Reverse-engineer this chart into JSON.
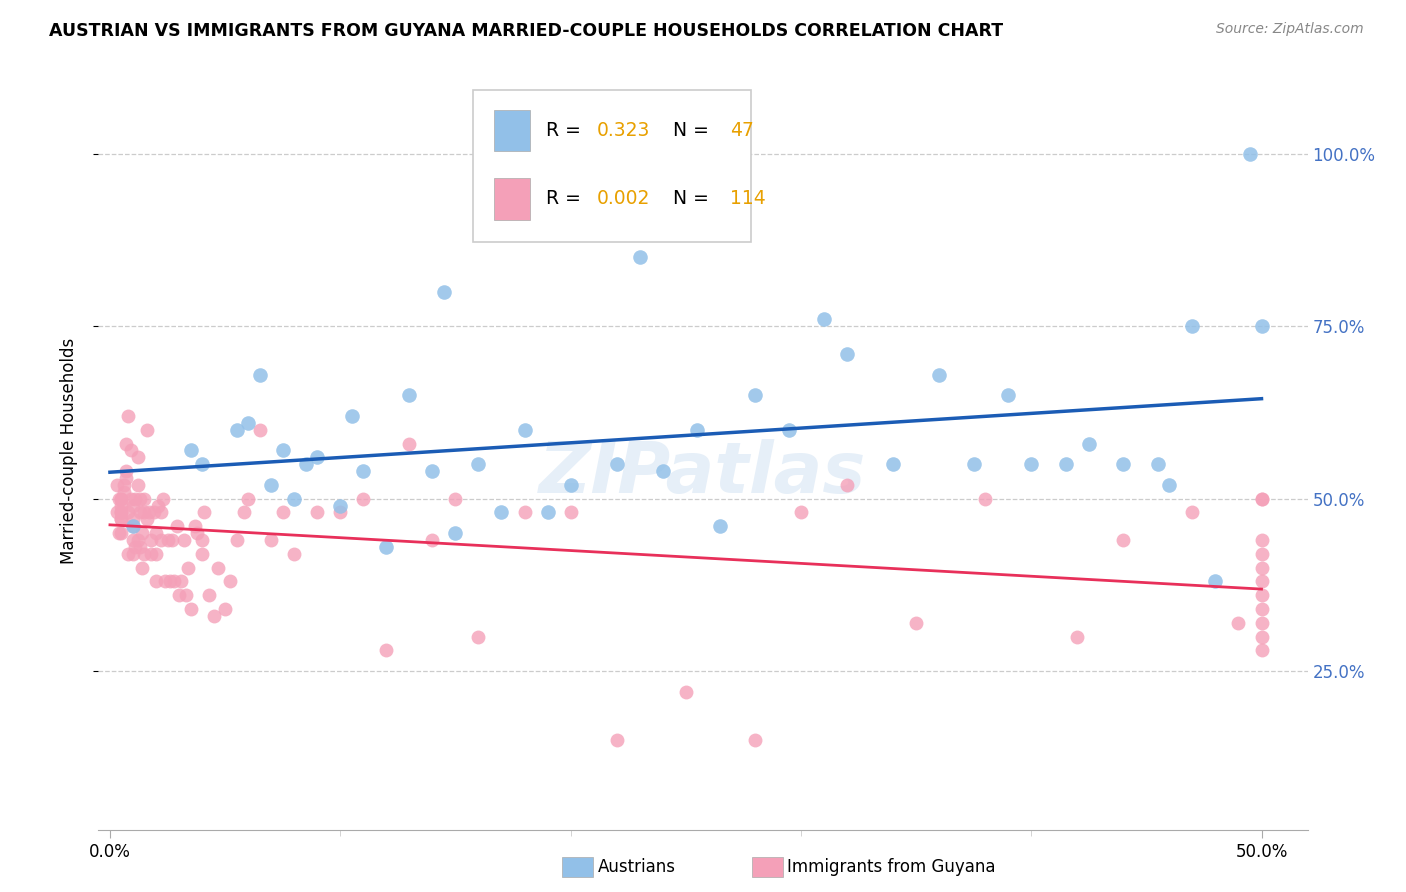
{
  "title": "AUSTRIAN VS IMMIGRANTS FROM GUYANA MARRIED-COUPLE HOUSEHOLDS CORRELATION CHART",
  "source": "Source: ZipAtlas.com",
  "ylabel": "Married-couple Households",
  "blue_color": "#92C0E8",
  "pink_color": "#F4A0B8",
  "blue_line_color": "#1B5CB5",
  "pink_line_color": "#E8305A",
  "ytick_positions": [
    0.25,
    0.5,
    0.75,
    1.0
  ],
  "ytick_labels": [
    "25.0%",
    "50.0%",
    "75.0%",
    "100.0%"
  ],
  "xtick_positions": [
    0.0,
    0.5
  ],
  "xtick_labels": [
    "0.0%",
    "50.0%"
  ],
  "xlim": [
    -0.005,
    0.52
  ],
  "ylim": [
    0.02,
    1.12
  ],
  "blue_R": "0.323",
  "blue_N": "47",
  "pink_R": "0.002",
  "pink_N": "114",
  "rn_color": "#E8A000",
  "blue_x": [
    0.01,
    0.035,
    0.04,
    0.055,
    0.06,
    0.065,
    0.07,
    0.075,
    0.08,
    0.085,
    0.09,
    0.1,
    0.105,
    0.11,
    0.12,
    0.13,
    0.14,
    0.145,
    0.15,
    0.16,
    0.17,
    0.18,
    0.19,
    0.2,
    0.22,
    0.23,
    0.24,
    0.255,
    0.265,
    0.28,
    0.295,
    0.31,
    0.32,
    0.34,
    0.36,
    0.375,
    0.39,
    0.4,
    0.415,
    0.425,
    0.44,
    0.455,
    0.46,
    0.47,
    0.48,
    0.495,
    0.5
  ],
  "blue_y": [
    0.46,
    0.57,
    0.55,
    0.6,
    0.61,
    0.68,
    0.52,
    0.57,
    0.5,
    0.55,
    0.56,
    0.49,
    0.62,
    0.54,
    0.43,
    0.65,
    0.54,
    0.8,
    0.45,
    0.55,
    0.48,
    0.6,
    0.48,
    0.52,
    0.55,
    0.85,
    0.54,
    0.6,
    0.46,
    0.65,
    0.6,
    0.76,
    0.71,
    0.55,
    0.68,
    0.55,
    0.65,
    0.55,
    0.55,
    0.58,
    0.55,
    0.55,
    0.52,
    0.75,
    0.38,
    1.0,
    0.75
  ],
  "pink_x": [
    0.003,
    0.003,
    0.004,
    0.004,
    0.005,
    0.005,
    0.005,
    0.005,
    0.005,
    0.005,
    0.005,
    0.005,
    0.006,
    0.006,
    0.007,
    0.007,
    0.007,
    0.008,
    0.008,
    0.008,
    0.009,
    0.009,
    0.01,
    0.01,
    0.01,
    0.01,
    0.01,
    0.011,
    0.011,
    0.012,
    0.012,
    0.012,
    0.013,
    0.013,
    0.013,
    0.014,
    0.014,
    0.015,
    0.015,
    0.015,
    0.016,
    0.016,
    0.017,
    0.018,
    0.018,
    0.019,
    0.02,
    0.02,
    0.02,
    0.021,
    0.022,
    0.022,
    0.023,
    0.024,
    0.025,
    0.026,
    0.027,
    0.028,
    0.029,
    0.03,
    0.031,
    0.032,
    0.033,
    0.034,
    0.035,
    0.037,
    0.038,
    0.04,
    0.04,
    0.041,
    0.043,
    0.045,
    0.047,
    0.05,
    0.052,
    0.055,
    0.058,
    0.06,
    0.065,
    0.07,
    0.075,
    0.08,
    0.09,
    0.1,
    0.11,
    0.12,
    0.13,
    0.14,
    0.15,
    0.16,
    0.18,
    0.2,
    0.22,
    0.25,
    0.28,
    0.3,
    0.32,
    0.35,
    0.38,
    0.42,
    0.44,
    0.47,
    0.49,
    0.5,
    0.5,
    0.5,
    0.5,
    0.5,
    0.5,
    0.5,
    0.5,
    0.5,
    0.5,
    0.5
  ],
  "pink_y": [
    0.48,
    0.52,
    0.45,
    0.5,
    0.45,
    0.47,
    0.47,
    0.48,
    0.48,
    0.49,
    0.5,
    0.5,
    0.51,
    0.52,
    0.53,
    0.54,
    0.58,
    0.42,
    0.62,
    0.48,
    0.5,
    0.57,
    0.42,
    0.44,
    0.46,
    0.47,
    0.49,
    0.43,
    0.5,
    0.44,
    0.52,
    0.56,
    0.43,
    0.5,
    0.48,
    0.4,
    0.45,
    0.5,
    0.42,
    0.48,
    0.47,
    0.6,
    0.48,
    0.42,
    0.44,
    0.48,
    0.38,
    0.42,
    0.45,
    0.49,
    0.48,
    0.44,
    0.5,
    0.38,
    0.44,
    0.38,
    0.44,
    0.38,
    0.46,
    0.36,
    0.38,
    0.44,
    0.36,
    0.4,
    0.34,
    0.46,
    0.45,
    0.42,
    0.44,
    0.48,
    0.36,
    0.33,
    0.4,
    0.34,
    0.38,
    0.44,
    0.48,
    0.5,
    0.6,
    0.44,
    0.48,
    0.42,
    0.48,
    0.48,
    0.5,
    0.28,
    0.58,
    0.44,
    0.5,
    0.3,
    0.48,
    0.48,
    0.15,
    0.22,
    0.15,
    0.48,
    0.52,
    0.32,
    0.5,
    0.3,
    0.44,
    0.48,
    0.32,
    0.5,
    0.28,
    0.3,
    0.32,
    0.34,
    0.36,
    0.38,
    0.4,
    0.42,
    0.44,
    0.5
  ]
}
